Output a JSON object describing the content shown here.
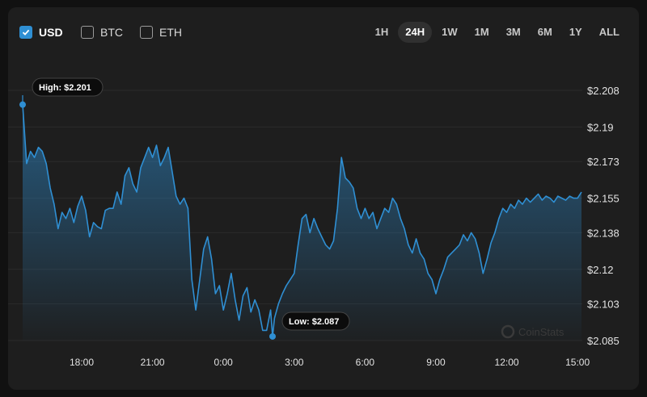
{
  "currencies": [
    {
      "label": "USD",
      "checked": true
    },
    {
      "label": "BTC",
      "checked": false
    },
    {
      "label": "ETH",
      "checked": false
    }
  ],
  "time_ranges": [
    {
      "label": "1H",
      "active": false
    },
    {
      "label": "24H",
      "active": true
    },
    {
      "label": "1W",
      "active": false
    },
    {
      "label": "1M",
      "active": false
    },
    {
      "label": "3M",
      "active": false
    },
    {
      "label": "6M",
      "active": false
    },
    {
      "label": "1Y",
      "active": false
    },
    {
      "label": "ALL",
      "active": false
    }
  ],
  "watermark": "CoinStats",
  "colors": {
    "line": "#2f8fd3",
    "accent": "#2f8fd3",
    "background": "#1e1e1e"
  },
  "chart_data": {
    "type": "area",
    "title": "",
    "xlabel": "",
    "ylabel": "",
    "x_range": [
      "15:30",
      "15:10"
    ],
    "ylim": [
      2.085,
      2.208
    ],
    "y_ticks": [
      "$2.208",
      "$2.19",
      "$2.173",
      "$2.155",
      "$2.138",
      "$2.12",
      "$2.103",
      "$2.085"
    ],
    "y_tick_values": [
      2.208,
      2.19,
      2.173,
      2.155,
      2.138,
      2.12,
      2.103,
      2.085
    ],
    "x_ticks": [
      {
        "label": "18:00",
        "time": "18:00"
      },
      {
        "label": "21:00",
        "time": "21:00"
      },
      {
        "label": "0:00",
        "time": "0:00"
      },
      {
        "label": "3:00",
        "time": "3:00"
      },
      {
        "label": "6:00",
        "time": "6:00"
      },
      {
        "label": "9:00",
        "time": "9:00"
      },
      {
        "label": "12:00",
        "time": "12:00"
      },
      {
        "label": "15:00",
        "time": "15:00"
      }
    ],
    "grid": true,
    "high": {
      "label": "High: $2.201",
      "value": 2.201,
      "time": "15:30"
    },
    "low": {
      "label": "Low: $2.087",
      "value": 2.087,
      "time": "2:05"
    },
    "series": [
      {
        "values": [
          [
            "15:30",
            2.201
          ],
          [
            "15:40",
            2.172
          ],
          [
            "15:50",
            2.178
          ],
          [
            "16:00",
            2.175
          ],
          [
            "16:10",
            2.18
          ],
          [
            "16:20",
            2.178
          ],
          [
            "16:30",
            2.172
          ],
          [
            "16:40",
            2.16
          ],
          [
            "16:50",
            2.152
          ],
          [
            "17:00",
            2.14
          ],
          [
            "17:10",
            2.148
          ],
          [
            "17:20",
            2.145
          ],
          [
            "17:30",
            2.15
          ],
          [
            "17:40",
            2.143
          ],
          [
            "17:50",
            2.151
          ],
          [
            "18:00",
            2.156
          ],
          [
            "18:10",
            2.149
          ],
          [
            "18:20",
            2.136
          ],
          [
            "18:30",
            2.143
          ],
          [
            "18:40",
            2.141
          ],
          [
            "18:50",
            2.14
          ],
          [
            "19:00",
            2.149
          ],
          [
            "19:10",
            2.15
          ],
          [
            "19:20",
            2.15
          ],
          [
            "19:30",
            2.158
          ],
          [
            "19:40",
            2.152
          ],
          [
            "19:50",
            2.166
          ],
          [
            "20:00",
            2.17
          ],
          [
            "20:10",
            2.162
          ],
          [
            "20:20",
            2.158
          ],
          [
            "20:30",
            2.17
          ],
          [
            "20:40",
            2.175
          ],
          [
            "20:50",
            2.18
          ],
          [
            "21:00",
            2.175
          ],
          [
            "21:10",
            2.181
          ],
          [
            "21:20",
            2.171
          ],
          [
            "21:30",
            2.175
          ],
          [
            "21:40",
            2.18
          ],
          [
            "21:50",
            2.168
          ],
          [
            "22:00",
            2.156
          ],
          [
            "22:10",
            2.152
          ],
          [
            "22:20",
            2.155
          ],
          [
            "22:30",
            2.15
          ],
          [
            "22:40",
            2.115
          ],
          [
            "22:50",
            2.1
          ],
          [
            "23:00",
            2.115
          ],
          [
            "23:10",
            2.13
          ],
          [
            "23:20",
            2.136
          ],
          [
            "23:30",
            2.125
          ],
          [
            "23:40",
            2.108
          ],
          [
            "23:50",
            2.112
          ],
          [
            "0:00",
            2.1
          ],
          [
            "0:10",
            2.108
          ],
          [
            "0:20",
            2.118
          ],
          [
            "0:30",
            2.105
          ],
          [
            "0:40",
            2.095
          ],
          [
            "0:50",
            2.107
          ],
          [
            "1:00",
            2.111
          ],
          [
            "1:10",
            2.099
          ],
          [
            "1:20",
            2.105
          ],
          [
            "1:30",
            2.1
          ],
          [
            "1:40",
            2.09
          ],
          [
            "1:50",
            2.09
          ],
          [
            "2:00",
            2.1
          ],
          [
            "2:05",
            2.087
          ],
          [
            "2:10",
            2.096
          ],
          [
            "2:20",
            2.103
          ],
          [
            "2:30",
            2.108
          ],
          [
            "2:40",
            2.112
          ],
          [
            "2:50",
            2.115
          ],
          [
            "3:00",
            2.118
          ],
          [
            "3:10",
            2.132
          ],
          [
            "3:20",
            2.145
          ],
          [
            "3:30",
            2.147
          ],
          [
            "3:40",
            2.138
          ],
          [
            "3:50",
            2.145
          ],
          [
            "4:00",
            2.14
          ],
          [
            "4:10",
            2.136
          ],
          [
            "4:20",
            2.132
          ],
          [
            "4:30",
            2.13
          ],
          [
            "4:40",
            2.134
          ],
          [
            "4:50",
            2.15
          ],
          [
            "5:00",
            2.175
          ],
          [
            "5:10",
            2.165
          ],
          [
            "5:20",
            2.163
          ],
          [
            "5:30",
            2.16
          ],
          [
            "5:40",
            2.15
          ],
          [
            "5:50",
            2.145
          ],
          [
            "6:00",
            2.15
          ],
          [
            "6:10",
            2.145
          ],
          [
            "6:20",
            2.148
          ],
          [
            "6:30",
            2.14
          ],
          [
            "6:40",
            2.145
          ],
          [
            "6:50",
            2.15
          ],
          [
            "7:00",
            2.148
          ],
          [
            "7:10",
            2.155
          ],
          [
            "7:20",
            2.152
          ],
          [
            "7:30",
            2.145
          ],
          [
            "7:40",
            2.14
          ],
          [
            "7:50",
            2.132
          ],
          [
            "8:00",
            2.128
          ],
          [
            "8:10",
            2.135
          ],
          [
            "8:20",
            2.128
          ],
          [
            "8:30",
            2.125
          ],
          [
            "8:40",
            2.118
          ],
          [
            "8:50",
            2.115
          ],
          [
            "9:00",
            2.108
          ],
          [
            "9:10",
            2.115
          ],
          [
            "9:20",
            2.12
          ],
          [
            "9:30",
            2.126
          ],
          [
            "9:40",
            2.128
          ],
          [
            "9:50",
            2.13
          ],
          [
            "10:00",
            2.132
          ],
          [
            "10:10",
            2.137
          ],
          [
            "10:20",
            2.134
          ],
          [
            "10:30",
            2.138
          ],
          [
            "10:40",
            2.135
          ],
          [
            "10:50",
            2.128
          ],
          [
            "11:00",
            2.118
          ],
          [
            "11:10",
            2.125
          ],
          [
            "11:20",
            2.133
          ],
          [
            "11:30",
            2.138
          ],
          [
            "11:40",
            2.145
          ],
          [
            "11:50",
            2.15
          ],
          [
            "12:00",
            2.148
          ],
          [
            "12:10",
            2.152
          ],
          [
            "12:20",
            2.15
          ],
          [
            "12:30",
            2.154
          ],
          [
            "12:40",
            2.152
          ],
          [
            "12:50",
            2.155
          ],
          [
            "13:00",
            2.153
          ],
          [
            "13:10",
            2.155
          ],
          [
            "13:20",
            2.157
          ],
          [
            "13:30",
            2.154
          ],
          [
            "13:40",
            2.156
          ],
          [
            "13:50",
            2.155
          ],
          [
            "14:00",
            2.153
          ],
          [
            "14:10",
            2.156
          ],
          [
            "14:20",
            2.155
          ],
          [
            "14:30",
            2.154
          ],
          [
            "14:40",
            2.156
          ],
          [
            "14:50",
            2.155
          ],
          [
            "15:00",
            2.155
          ],
          [
            "15:10",
            2.158
          ]
        ]
      }
    ]
  }
}
